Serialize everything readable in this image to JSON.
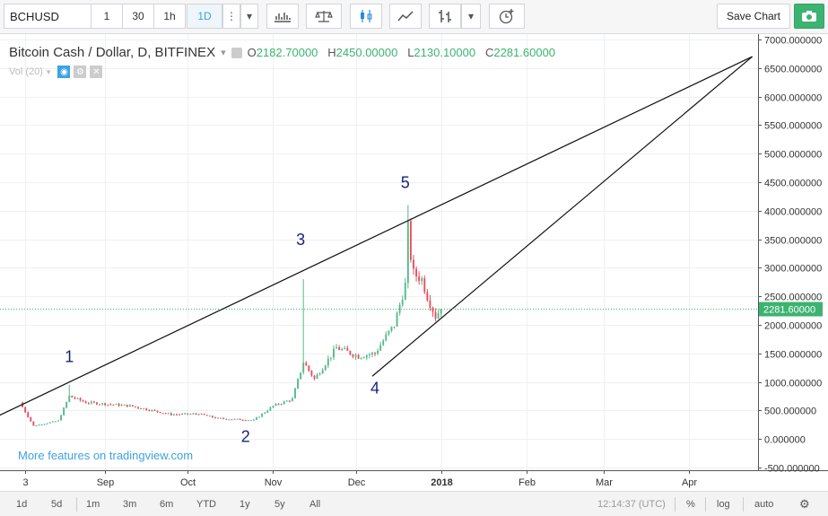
{
  "toolbar": {
    "symbol": "BCHUSD",
    "intervals": [
      "1",
      "30",
      "1h",
      "1D"
    ],
    "active_interval": "1D",
    "save_label": "Save Chart"
  },
  "legend": {
    "title": "Bitcoin Cash / Dollar, D, BITFINEX",
    "o_label": "O",
    "o": "2182.70000",
    "h_label": "H",
    "h": "2450.00000",
    "l_label": "L",
    "l": "2130.10000",
    "c_label": "C",
    "c": "2281.60000",
    "volume": "Vol (20)"
  },
  "promo": "More features on tradingview.com",
  "bottom": {
    "ranges": [
      "1d",
      "5d",
      "1m",
      "3m",
      "6m",
      "YTD",
      "1y",
      "5y",
      "All"
    ],
    "time": "12:14:37 (UTC)",
    "percent": "%",
    "log": "log",
    "auto": "auto"
  },
  "colors": {
    "up": "#53b987",
    "down": "#eb4d5c",
    "last_price_line": "#3cb371",
    "wave_labels": "#1a237e"
  },
  "chart_data": {
    "type": "candlestick",
    "title": "Bitcoin Cash / Dollar, D, BITFINEX",
    "y_axis": {
      "min": -500,
      "max": 7000,
      "ticks": [
        -500,
        0,
        500,
        1000,
        1500,
        2000,
        2500,
        3000,
        3500,
        4000,
        4500,
        5000,
        5500,
        6000,
        6500,
        7000
      ],
      "decimals": 6
    },
    "x_axis": {
      "start": "2017-08-01",
      "end": "2018-04-30",
      "ticks": [
        {
          "date": "2017-08-03",
          "label": "3"
        },
        {
          "date": "2017-09-01",
          "label": "Sep"
        },
        {
          "date": "2017-10-01",
          "label": "Oct"
        },
        {
          "date": "2017-11-01",
          "label": "Nov"
        },
        {
          "date": "2017-12-01",
          "label": "Dec"
        },
        {
          "date": "2018-01-01",
          "label": "2018"
        },
        {
          "date": "2018-02-01",
          "label": "Feb"
        },
        {
          "date": "2018-03-01",
          "label": "Mar"
        },
        {
          "date": "2018-04-01",
          "label": "Apr"
        }
      ]
    },
    "last_price": 2281.6,
    "last_price_label": "2281.60000",
    "grid": true,
    "key_points": [
      {
        "date": "2017-08-01",
        "close": 640
      },
      {
        "date": "2017-08-06",
        "close": 230
      },
      {
        "date": "2017-08-15",
        "close": 320
      },
      {
        "date": "2017-08-19",
        "close": 750
      },
      {
        "date": "2017-08-25",
        "close": 640
      },
      {
        "date": "2017-09-10",
        "close": 580
      },
      {
        "date": "2017-09-18",
        "close": 500
      },
      {
        "date": "2017-09-25",
        "close": 430
      },
      {
        "date": "2017-10-05",
        "close": 440
      },
      {
        "date": "2017-10-12",
        "close": 360
      },
      {
        "date": "2017-10-25",
        "close": 330
      },
      {
        "date": "2017-11-01",
        "close": 580
      },
      {
        "date": "2017-11-08",
        "close": 700
      },
      {
        "date": "2017-11-12",
        "close": 1350
      },
      {
        "date": "2017-11-16",
        "close": 1050
      },
      {
        "date": "2017-11-24",
        "close": 1600
      },
      {
        "date": "2017-12-02",
        "close": 1450
      },
      {
        "date": "2017-12-08",
        "close": 1500
      },
      {
        "date": "2017-12-12",
        "close": 1800
      },
      {
        "date": "2017-12-15",
        "close": 2000
      },
      {
        "date": "2017-12-19",
        "close": 2700
      },
      {
        "date": "2017-12-20",
        "close": 3700
      },
      {
        "date": "2017-12-21",
        "close": 3200
      },
      {
        "date": "2017-12-22",
        "close": 2900
      },
      {
        "date": "2017-12-25",
        "close": 2800
      },
      {
        "date": "2017-12-27",
        "close": 2500
      },
      {
        "date": "2017-12-30",
        "close": 2150
      },
      {
        "date": "2018-01-01",
        "close": 2281.6
      }
    ],
    "spikes": [
      {
        "date": "2017-11-12",
        "high": 2800
      },
      {
        "date": "2017-12-20",
        "high": 4100
      },
      {
        "date": "2017-08-19",
        "high": 950
      }
    ],
    "trendlines": [
      {
        "from": {
          "date": "2017-07-24",
          "price": 400
        },
        "to": {
          "date": "2018-04-24",
          "price": 6700
        }
      },
      {
        "from": {
          "date": "2017-12-07",
          "price": 1100
        },
        "to": {
          "date": "2018-04-24",
          "price": 6700
        }
      }
    ],
    "wave_labels": [
      {
        "text": "1",
        "date": "2017-08-19",
        "price": 1350
      },
      {
        "text": "2",
        "date": "2017-10-22",
        "price": -50
      },
      {
        "text": "3",
        "date": "2017-11-11",
        "price": 3400
      },
      {
        "text": "4",
        "date": "2017-12-08",
        "price": 800
      },
      {
        "text": "5",
        "date": "2017-12-19",
        "price": 4400
      }
    ]
  }
}
